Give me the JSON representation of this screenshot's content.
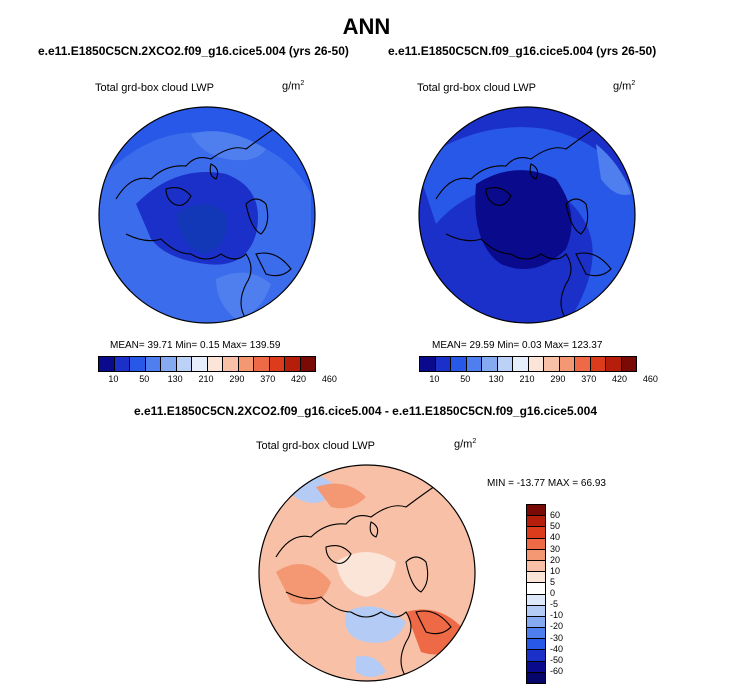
{
  "title": "ANN",
  "panels": [
    {
      "case": "e.e11.E1850C5CN.2XCO2.f09_g16.cice5.004 (yrs 26-50)",
      "variable": "Total grd-box cloud LWP",
      "units_base": "g/m",
      "units_exp": "2",
      "stats": "MEAN=  39.71  Min=   0.15  Max= 139.59"
    },
    {
      "case": "e.e11.E1850C5CN.f09_g16.cice5.004 (yrs 26-50)",
      "variable": "Total grd-box cloud LWP",
      "units_base": "g/m",
      "units_exp": "2",
      "stats": "MEAN=  29.59  Min=   0.03  Max= 123.37"
    }
  ],
  "diff": {
    "title": "e.e11.E1850C5CN.2XCO2.f09_g16.cice5.004 - e.e11.E1850C5CN.f09_g16.cice5.004",
    "variable": "Total grd-box cloud LWP",
    "units_base": "g/m",
    "units_exp": "2",
    "stats": "MIN = -13.77 MAX =  66.93"
  },
  "colorbar_abs": {
    "labels": [
      "10",
      "50",
      "130",
      "210",
      "290",
      "370",
      "420",
      "460"
    ],
    "colors": [
      "#0a0a8c",
      "#1a30c8",
      "#2858e8",
      "#4f7fee",
      "#86aaf2",
      "#bcd1f6",
      "#e6eefb",
      "#fbe4d8",
      "#f8c0a6",
      "#f49874",
      "#ee6a46",
      "#dc3c1c",
      "#b41e0a",
      "#7a0a06"
    ]
  },
  "colorbar_diff": {
    "labels": [
      "60",
      "50",
      "40",
      "30",
      "20",
      "10",
      "5",
      "0",
      "-5",
      "-10",
      "-20",
      "-30",
      "-40",
      "-50",
      "-60"
    ],
    "colors": [
      "#7a0a06",
      "#b41e0a",
      "#dc3c1c",
      "#ee6a46",
      "#f49874",
      "#f8c0a6",
      "#fbe4d8",
      "#ffffff",
      "#dde8fb",
      "#b4cbf5",
      "#86aaf2",
      "#4f7fee",
      "#2858e8",
      "#1a30c8",
      "#0a0a8c",
      "#06066a"
    ]
  },
  "map_colors": {
    "abs_bg": "#2858e8",
    "abs_mid": "#1a30c8",
    "abs_dark": "#0a0a8c",
    "diff_bg": "#f8c0a6",
    "diff_light": "#fbe4d8",
    "diff_strong": "#ee6a46",
    "diff_blue": "#b4cbf5"
  }
}
